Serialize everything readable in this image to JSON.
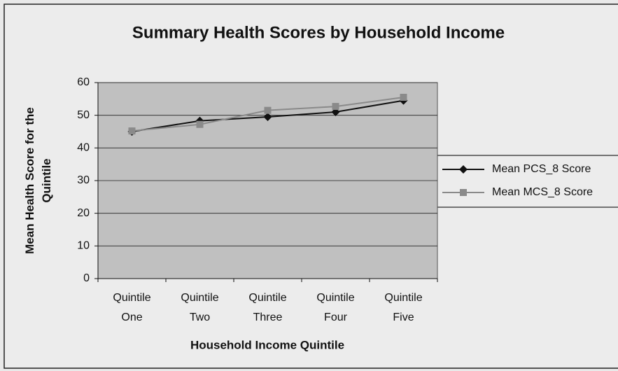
{
  "chart_data": {
    "type": "line",
    "title": "Summary Health Scores by Household Income",
    "x_label": "Household Income Quintile",
    "y_label": "Mean Health Score for the Quintile",
    "categories": [
      "Quintile One",
      "Quintile Two",
      "Quintile Three",
      "Quintile Four",
      "Quintile Five"
    ],
    "series": [
      {
        "name": "Mean PCS_8 Score",
        "color": "#111111",
        "marker": "diamond",
        "values": [
          45,
          48.3,
          49.5,
          51,
          54.5
        ]
      },
      {
        "name": "Mean MCS_8 Score",
        "color": "#8a8a8a",
        "marker": "square",
        "values": [
          45.2,
          47.2,
          51.5,
          52.7,
          55.5
        ]
      }
    ],
    "ylim": [
      0,
      60
    ],
    "yticks": [
      0,
      10,
      20,
      30,
      40,
      50,
      60
    ],
    "grid": true,
    "legend": "right",
    "plot_background": "#c0c0c0"
  }
}
